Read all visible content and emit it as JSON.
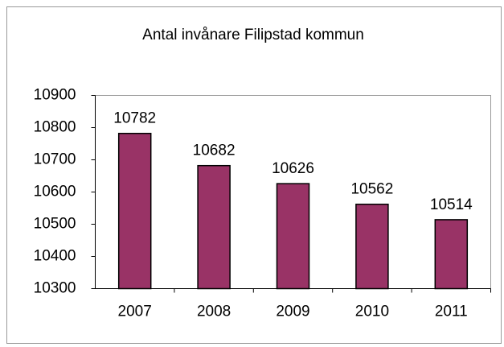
{
  "chart_data": {
    "type": "bar",
    "title": "Antal invånare Filipstad kommun",
    "categories": [
      "2007",
      "2008",
      "2009",
      "2010",
      "2011"
    ],
    "values": [
      10782,
      10682,
      10626,
      10562,
      10514
    ],
    "color": "#993366",
    "ylim": [
      10300,
      10900
    ],
    "yticks": [
      10300,
      10400,
      10500,
      10600,
      10700,
      10800,
      10900
    ],
    "grid": false
  }
}
